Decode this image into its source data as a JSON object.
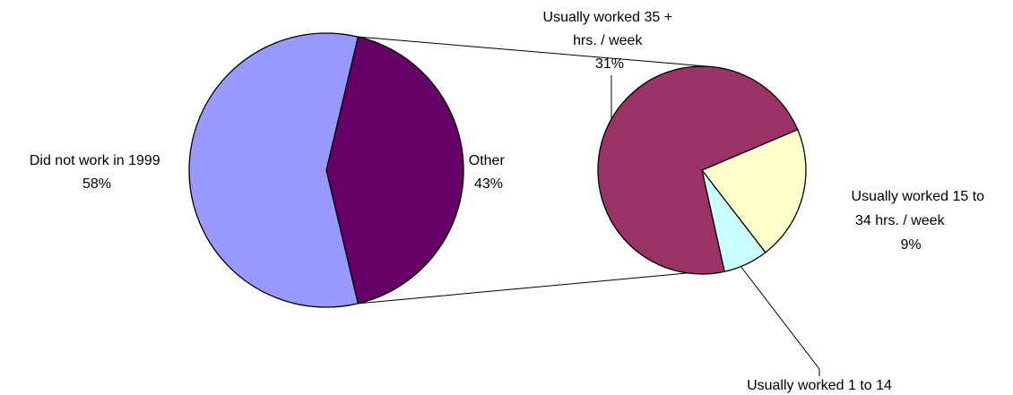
{
  "chart_data": {
    "type": "pie",
    "subtype": "pie-of-pie",
    "title": "",
    "main_pie": {
      "slices": [
        {
          "label": "Did not work in 1999",
          "value": 58,
          "value_label": "58%",
          "color": "#9999ff"
        },
        {
          "label": "Other",
          "value": 43,
          "value_label": "43%",
          "color": "#660066"
        }
      ]
    },
    "secondary_pie": {
      "breakdown_of": "Other",
      "slices": [
        {
          "label": "Usually worked 35 + hrs. / week",
          "value": 31,
          "value_label": "31%",
          "color": "#993366",
          "label_lines": [
            "Usually worked 35 +",
            "hrs. / week",
            "31%"
          ]
        },
        {
          "label": "Usually worked 15 to 34 hrs. / week",
          "value": 9,
          "value_label": "9%",
          "color": "#ffffcc",
          "label_lines": [
            "Usually worked 15 to",
            "34 hrs. / week",
            "9%"
          ]
        },
        {
          "label": "Usually worked 1 to 14",
          "value": 3,
          "value_label": "",
          "color": "#ccffff",
          "label_lines": [
            "Usually worked 1 to 14"
          ]
        }
      ]
    },
    "main_labels": {
      "did_not_work": [
        "Did not work in 1999",
        "58%"
      ],
      "other": [
        "Other",
        "43%"
      ]
    },
    "legend": "none"
  }
}
